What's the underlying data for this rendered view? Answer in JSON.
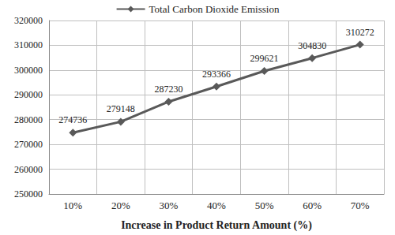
{
  "chart_data": {
    "type": "line",
    "x_label": "Increase in Product Return Amount (%)",
    "categories": [
      "10%",
      "20%",
      "30%",
      "40%",
      "50%",
      "60%",
      "70%"
    ],
    "series": [
      {
        "name": "Total Carbon Dioxide Emission",
        "color": "#595959",
        "values": [
          274736,
          279148,
          287230,
          293366,
          299621,
          304830,
          310272
        ],
        "marker": "diamond",
        "line_style": "solid"
      }
    ],
    "ylim": [
      250000,
      320000
    ],
    "yticks": [
      250000,
      260000,
      270000,
      280000,
      290000,
      300000,
      310000,
      320000
    ],
    "grid": true,
    "legend": "top",
    "data_labels": true
  }
}
